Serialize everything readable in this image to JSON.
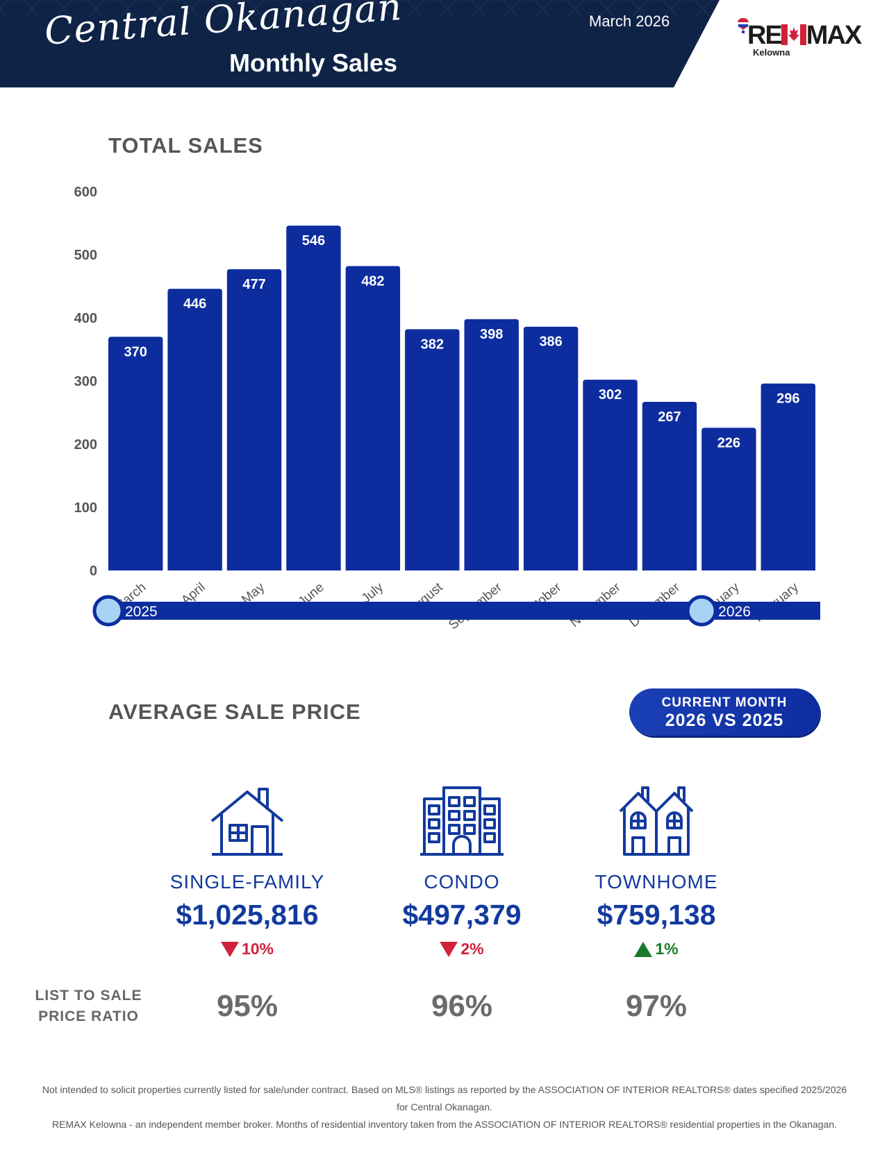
{
  "header": {
    "script_title": "Central Okanagan",
    "subtitle": "Monthly Sales",
    "date": "March 2026",
    "logo_text": "RE/MAX",
    "logo_sub": "Kelowna",
    "bg_color": "#0f2347"
  },
  "total_sales": {
    "title": "TOTAL SALES"
  },
  "chart_data": {
    "type": "bar",
    "title": "TOTAL SALES",
    "categories": [
      "March",
      "April",
      "May",
      "June",
      "July",
      "August",
      "September",
      "October",
      "November",
      "December",
      "January",
      "February"
    ],
    "values": [
      370,
      446,
      477,
      546,
      482,
      382,
      398,
      386,
      302,
      267,
      226,
      296
    ],
    "ylim": [
      0,
      600
    ],
    "yticks": [
      0,
      100,
      200,
      300,
      400,
      500,
      600
    ],
    "bar_color": "#0d2d9f",
    "grid": false,
    "timeline": {
      "labels": [
        "2025",
        "2026"
      ],
      "marker_categories": [
        "March",
        "January"
      ]
    }
  },
  "average_sale_price": {
    "title": "AVERAGE SALE PRICE",
    "badge_line1": "CURRENT MONTH",
    "badge_line2": "2026 VS 2025",
    "properties": [
      {
        "icon": "house-icon",
        "label": "SINGLE-FAMILY",
        "price": "$1,025,816",
        "change": "10%",
        "direction": "down",
        "ratio": "95%"
      },
      {
        "icon": "condo-building-icon",
        "label": "CONDO",
        "price": "$497,379",
        "change": "2%",
        "direction": "down",
        "ratio": "96%"
      },
      {
        "icon": "townhome-icon",
        "label": "TOWNHOME",
        "price": "$759,138",
        "change": "1%",
        "direction": "up",
        "ratio": "97%"
      }
    ],
    "ratio_label_line1": "LIST TO SALE",
    "ratio_label_line2": "PRICE RATIO"
  },
  "disclaimer": {
    "line1": "Not intended to solicit properties currently listed for sale/under contract. Based on MLS® listings as reported by the ASSOCIATION OF INTERIOR REALTORS® dates specified 2025/2026 for Central Okanagan.",
    "line2": "REMAX Kelowna - an independent member broker. Months of residential inventory taken from the ASSOCIATION OF INTERIOR REALTORS® residential properties in the Okanagan."
  }
}
